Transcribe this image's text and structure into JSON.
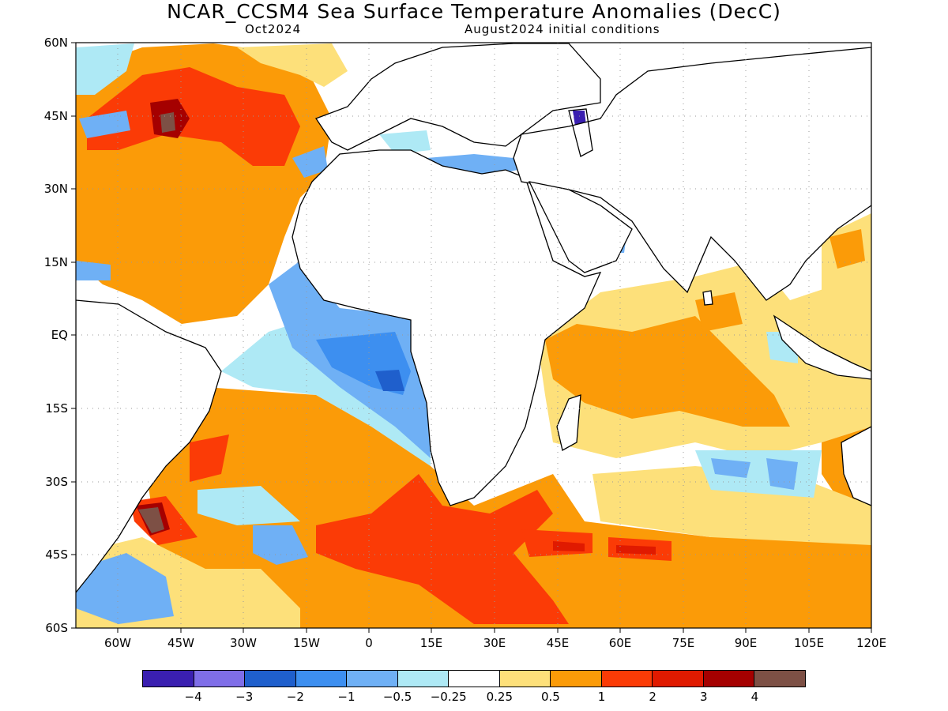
{
  "title": "NCAR_CCSM4 Sea Surface Temperature Anomalies (DecC)",
  "subtitle_left": "Oct2024",
  "subtitle_right": "August2024 initial conditions",
  "y_axis": {
    "ticks": [
      "60N",
      "45N",
      "30N",
      "15N",
      "EQ",
      "15S",
      "30S",
      "45S",
      "60S"
    ],
    "range": [
      -60,
      60
    ]
  },
  "x_axis": {
    "ticks": [
      "60W",
      "45W",
      "30W",
      "15W",
      "0",
      "15E",
      "30E",
      "45E",
      "60E",
      "75E",
      "90E",
      "105E",
      "120E"
    ],
    "range": [
      -70,
      120
    ]
  },
  "colorbar": {
    "colors": [
      "#3a1fb0",
      "#7f6ee8",
      "#1f5fcc",
      "#3d8ff0",
      "#6fb0f5",
      "#aee9f5",
      "#ffffff",
      "#fde07a",
      "#fb9b08",
      "#fb3b06",
      "#e01a00",
      "#a50000",
      "#7d5045"
    ],
    "labels": [
      "-4",
      "-3",
      "-2",
      "-1",
      "-0.5",
      "-0.25",
      "0.25",
      "0.5",
      "1",
      "2",
      "3",
      "4"
    ]
  },
  "chart_data": {
    "type": "heatmap",
    "variable": "Sea Surface Temperature Anomalies (DecC)",
    "x_range": [
      -70,
      120
    ],
    "y_range": [
      -60,
      60
    ],
    "levels": [
      -4,
      -3,
      -2,
      -1,
      -0.5,
      -0.25,
      0.25,
      0.5,
      1,
      2,
      3,
      4
    ],
    "grid": true
  }
}
